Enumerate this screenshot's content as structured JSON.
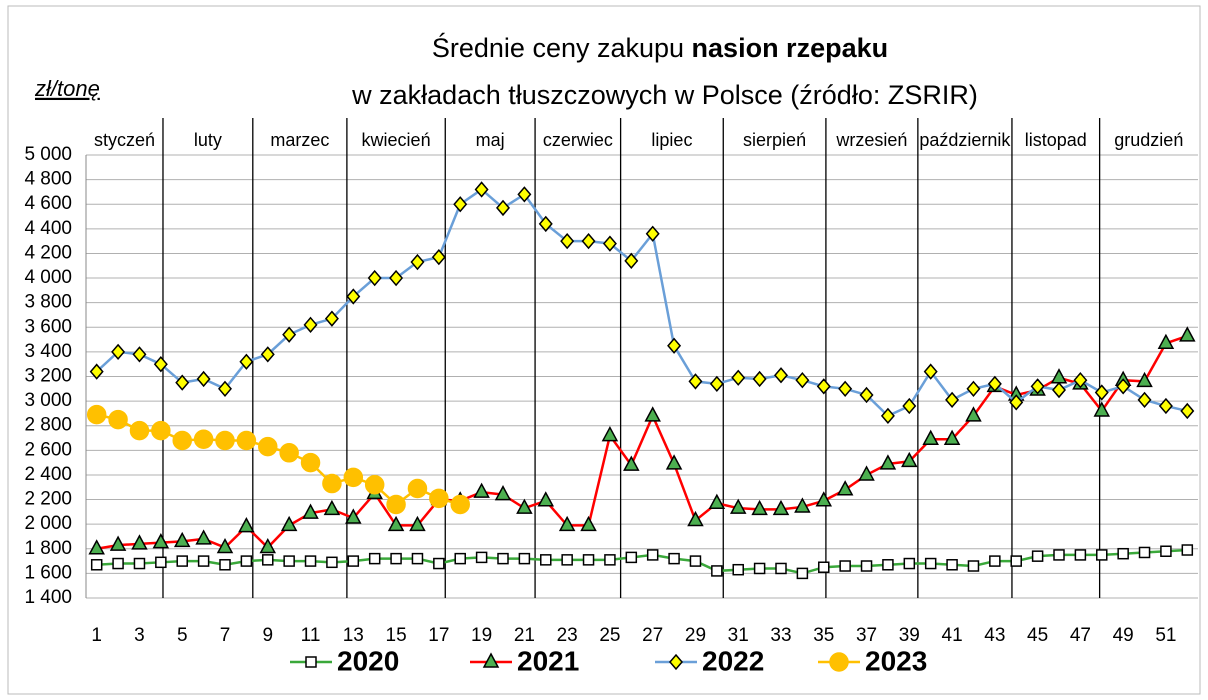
{
  "chart_data": {
    "type": "line",
    "title": "Średnie ceny zakupu ",
    "title_bold": "nasion rzepaku",
    "subtitle": "w zakładach tłuszczowych w Polsce  (źródło: ZSRIR)",
    "y_label": "zł/tonę",
    "months": [
      "styczeń",
      "luty",
      "marzec",
      "kwiecień",
      "maj",
      "czerwiec",
      "lipiec",
      "sierpień",
      "wrzesień",
      "październik",
      "listopad",
      "grudzień"
    ],
    "x": [
      1,
      2,
      3,
      4,
      5,
      6,
      7,
      8,
      9,
      10,
      11,
      12,
      13,
      14,
      15,
      16,
      17,
      18,
      19,
      20,
      21,
      22,
      23,
      24,
      25,
      26,
      27,
      28,
      29,
      30,
      31,
      32,
      33,
      34,
      35,
      36,
      37,
      38,
      39,
      40,
      41,
      42,
      43,
      44,
      45,
      46,
      47,
      48,
      49,
      50,
      51,
      52
    ],
    "xlim": [
      0.5,
      52.5
    ],
    "xticks": [
      1,
      3,
      5,
      7,
      9,
      11,
      13,
      15,
      17,
      19,
      21,
      23,
      25,
      27,
      29,
      31,
      33,
      35,
      37,
      39,
      41,
      43,
      45,
      47,
      49,
      51
    ],
    "ylim": [
      1400,
      5000
    ],
    "yticks": [
      {
        "value": 1400,
        "label": "1 400"
      },
      {
        "value": 1600,
        "label": "1 600"
      },
      {
        "value": 1800,
        "label": "1 800"
      },
      {
        "value": 2000,
        "label": "2 000"
      },
      {
        "value": 2200,
        "label": "2 200"
      },
      {
        "value": 2400,
        "label": "2 400"
      },
      {
        "value": 2600,
        "label": "2 600"
      },
      {
        "value": 2800,
        "label": "2 800"
      },
      {
        "value": 3000,
        "label": "3 000"
      },
      {
        "value": 3200,
        "label": "3 200"
      },
      {
        "value": 3400,
        "label": "3 400"
      },
      {
        "value": 3600,
        "label": "3 600"
      },
      {
        "value": 3800,
        "label": "3 800"
      },
      {
        "value": 4000,
        "label": "4 000"
      },
      {
        "value": 4200,
        "label": "4 200"
      },
      {
        "value": 4400,
        "label": "4 400"
      },
      {
        "value": 4600,
        "label": "4 600"
      },
      {
        "value": 4800,
        "label": "4 800"
      },
      {
        "value": 5000,
        "label": "5 000"
      }
    ],
    "grid": true,
    "legend": "bottom",
    "series": [
      {
        "name": "2020",
        "color": "#3aa83a",
        "marker": "square",
        "marker_color": "#ffffff",
        "values": [
          1670,
          1680,
          1680,
          1690,
          1700,
          1700,
          1670,
          1700,
          1710,
          1700,
          1700,
          1690,
          1700,
          1720,
          1720,
          1720,
          1680,
          1720,
          1730,
          1720,
          1720,
          1710,
          1710,
          1710,
          1710,
          1730,
          1750,
          1720,
          1700,
          1620,
          1630,
          1640,
          1640,
          1600,
          1650,
          1660,
          1660,
          1670,
          1680,
          1680,
          1670,
          1660,
          1700,
          1700,
          1740,
          1750,
          1750,
          1750,
          1760,
          1770,
          1780,
          1790
        ]
      },
      {
        "name": "2021",
        "color": "#ff0000",
        "marker": "triangle",
        "marker_color": "#4caf50",
        "values": [
          1800,
          1830,
          1840,
          1850,
          1860,
          1880,
          1810,
          1980,
          1810,
          1990,
          2090,
          2120,
          2050,
          2250,
          1990,
          1990,
          2200,
          2190,
          2260,
          2240,
          2130,
          2190,
          1990,
          1990,
          2720,
          2480,
          2880,
          2490,
          2030,
          2170,
          2130,
          2120,
          2120,
          2140,
          2190,
          2280,
          2400,
          2490,
          2510,
          2690,
          2690,
          2880,
          3120,
          3050,
          3090,
          3190,
          3140,
          2920,
          3170,
          3160,
          3470,
          3530
        ]
      },
      {
        "name": "2022",
        "color": "#6a9fd8",
        "marker": "diamond",
        "marker_color": "#ffff00",
        "values": [
          3240,
          3400,
          3380,
          3300,
          3150,
          3180,
          3100,
          3320,
          3380,
          3540,
          3620,
          3670,
          3850,
          4000,
          4000,
          4130,
          4170,
          4600,
          4720,
          4570,
          4680,
          4440,
          4300,
          4300,
          4280,
          4140,
          4360,
          3450,
          3160,
          3140,
          3190,
          3180,
          3210,
          3170,
          3120,
          3100,
          3050,
          2880,
          2960,
          3240,
          3010,
          3100,
          3140,
          2990,
          3120,
          3090,
          3170,
          3070,
          3120,
          3010,
          2960,
          2920
        ]
      },
      {
        "name": "2023",
        "color": "#ffc000",
        "marker": "circle",
        "marker_color": "#ffc000",
        "values": [
          2890,
          2850,
          2760,
          2760,
          2680,
          2690,
          2680,
          2680,
          2630,
          2580,
          2500,
          2330,
          2380,
          2320,
          2160,
          2290,
          2210,
          2160,
          null,
          null,
          null,
          null,
          null,
          null,
          null,
          null,
          null,
          null,
          null,
          null,
          null,
          null,
          null,
          null,
          null,
          null,
          null,
          null,
          null,
          null,
          null,
          null,
          null,
          null,
          null,
          null,
          null,
          null,
          null,
          null,
          null,
          null
        ]
      }
    ]
  }
}
